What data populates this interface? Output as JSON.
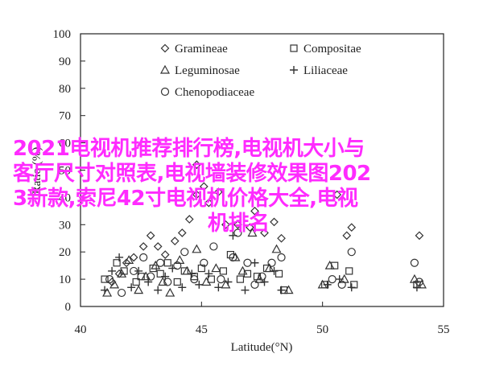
{
  "overlay_title_lines": [
    "2021电视机推荐排行榜,电视机大小与",
    "客厅尺寸对照表,电视墙装修效果图202",
    "3新款,索尼42寸电视机价格大全,电视",
    "机排名"
  ],
  "chart_data": {
    "type": "scatter",
    "xlabel": "Latitude(°N)",
    "ylabel": "Ratio (%)",
    "xlim": [
      40,
      55
    ],
    "ylim": [
      0,
      100
    ],
    "xticks": [
      "40",
      "45",
      "50",
      "55"
    ],
    "yticks": [
      "0",
      "10",
      "20",
      "30",
      "40",
      "50",
      "60",
      "70",
      "80",
      "90",
      "100"
    ],
    "grid": false,
    "legend_position": "top-center",
    "series": [
      {
        "name": "Gramineae",
        "marker": "diamond",
        "points": [
          [
            41.3,
            9
          ],
          [
            41.6,
            12
          ],
          [
            41.9,
            16
          ],
          [
            42.2,
            18
          ],
          [
            42.6,
            22
          ],
          [
            42.9,
            26
          ],
          [
            43.2,
            22
          ],
          [
            43.5,
            19
          ],
          [
            43.9,
            24
          ],
          [
            44.2,
            27
          ],
          [
            44.5,
            32
          ],
          [
            44.8,
            41
          ],
          [
            44.8,
            52
          ],
          [
            45.1,
            44
          ],
          [
            45.3,
            38
          ],
          [
            45.7,
            42
          ],
          [
            46.0,
            30
          ],
          [
            46.5,
            30
          ],
          [
            47.0,
            29
          ],
          [
            47.2,
            35
          ],
          [
            47.6,
            27
          ],
          [
            48.0,
            31
          ],
          [
            48.3,
            25
          ],
          [
            50.6,
            41
          ],
          [
            51.0,
            26
          ],
          [
            51.2,
            29
          ],
          [
            54.0,
            26
          ]
        ]
      },
      {
        "name": "Compositae",
        "marker": "square",
        "points": [
          [
            41.0,
            10
          ],
          [
            41.5,
            16
          ],
          [
            41.8,
            13
          ],
          [
            42.3,
            9
          ],
          [
            42.5,
            11
          ],
          [
            43.0,
            14
          ],
          [
            43.3,
            12
          ],
          [
            43.6,
            16
          ],
          [
            44.0,
            9
          ],
          [
            44.3,
            13
          ],
          [
            44.7,
            11
          ],
          [
            45.0,
            14
          ],
          [
            45.4,
            10
          ],
          [
            45.9,
            13
          ],
          [
            46.2,
            19
          ],
          [
            46.6,
            10
          ],
          [
            46.9,
            12
          ],
          [
            47.3,
            11
          ],
          [
            47.7,
            14
          ],
          [
            48.2,
            12
          ],
          [
            48.4,
            6
          ],
          [
            50.1,
            8
          ],
          [
            50.5,
            15
          ],
          [
            51.1,
            13
          ],
          [
            51.3,
            8
          ],
          [
            53.9,
            8
          ]
        ]
      },
      {
        "name": "Leguminosae",
        "marker": "triangle",
        "points": [
          [
            41.1,
            5
          ],
          [
            41.4,
            8
          ],
          [
            41.7,
            12
          ],
          [
            42.0,
            17
          ],
          [
            42.4,
            6
          ],
          [
            42.7,
            11
          ],
          [
            43.1,
            15
          ],
          [
            43.4,
            9
          ],
          [
            43.7,
            5
          ],
          [
            44.1,
            17
          ],
          [
            44.4,
            13
          ],
          [
            44.8,
            21
          ],
          [
            45.2,
            9
          ],
          [
            45.6,
            14
          ],
          [
            46.0,
            8
          ],
          [
            46.4,
            18
          ],
          [
            46.7,
            13
          ],
          [
            47.1,
            27
          ],
          [
            47.4,
            10
          ],
          [
            47.8,
            14
          ],
          [
            48.1,
            21
          ],
          [
            48.6,
            6
          ],
          [
            50.0,
            8
          ],
          [
            50.3,
            15
          ],
          [
            50.9,
            10
          ],
          [
            53.8,
            10
          ],
          [
            54.1,
            8
          ]
        ]
      },
      {
        "name": "Liliaceae",
        "marker": "plus",
        "points": [
          [
            41.0,
            6
          ],
          [
            41.3,
            13
          ],
          [
            41.6,
            18
          ],
          [
            42.1,
            7
          ],
          [
            42.4,
            13
          ],
          [
            42.8,
            9
          ],
          [
            43.2,
            6
          ],
          [
            43.5,
            11
          ],
          [
            43.8,
            14
          ],
          [
            44.2,
            7
          ],
          [
            44.6,
            12
          ],
          [
            44.9,
            8
          ],
          [
            45.3,
            12
          ],
          [
            45.7,
            7
          ],
          [
            46.1,
            9
          ],
          [
            46.3,
            26
          ],
          [
            46.8,
            6
          ],
          [
            47.2,
            16
          ],
          [
            47.6,
            9
          ],
          [
            48.0,
            13
          ],
          [
            48.3,
            6
          ],
          [
            50.2,
            8
          ],
          [
            50.7,
            10
          ],
          [
            51.2,
            7
          ],
          [
            53.9,
            7
          ]
        ]
      },
      {
        "name": "Chenopodiaceae",
        "marker": "circle",
        "points": [
          [
            41.2,
            10
          ],
          [
            41.7,
            5
          ],
          [
            42.2,
            13
          ],
          [
            42.6,
            18
          ],
          [
            42.9,
            11
          ],
          [
            43.3,
            16
          ],
          [
            43.6,
            9
          ],
          [
            44.0,
            15
          ],
          [
            44.3,
            20
          ],
          [
            44.7,
            10
          ],
          [
            45.1,
            16
          ],
          [
            45.5,
            22
          ],
          [
            45.8,
            10
          ],
          [
            46.3,
            18
          ],
          [
            46.5,
            27
          ],
          [
            46.9,
            16
          ],
          [
            47.2,
            8
          ],
          [
            47.5,
            11
          ],
          [
            47.9,
            16
          ],
          [
            48.3,
            18
          ],
          [
            50.4,
            10
          ],
          [
            50.8,
            8
          ],
          [
            51.2,
            20
          ],
          [
            53.8,
            16
          ],
          [
            54.0,
            9
          ]
        ]
      }
    ]
  }
}
